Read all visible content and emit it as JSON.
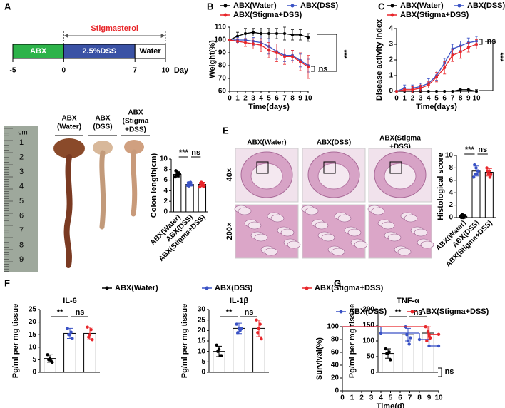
{
  "panel_labels": [
    "A",
    "B",
    "C",
    "D",
    "E",
    "F",
    "G"
  ],
  "timeline": {
    "segments": [
      {
        "label": "ABX",
        "color": "#2db34a",
        "start": -5,
        "end": 0
      },
      {
        "label": "2.5%DSS",
        "color": "#3a52a5",
        "start": 0,
        "end": 7
      },
      {
        "label": "Water",
        "color": "#ffffff",
        "start": 7,
        "end": 10
      }
    ],
    "treatment": {
      "label": "Stigmasterol",
      "start": 0,
      "end": 10,
      "color": "#e8262a"
    },
    "ticks": [
      -5,
      0,
      7,
      10
    ],
    "unit": "Day"
  },
  "ruler": {
    "unit": "cm",
    "marks": [
      "1",
      "2",
      "3",
      "4",
      "5",
      "6",
      "7",
      "8",
      "9"
    ]
  },
  "photo_labels": [
    [
      "ABX",
      "(Water)"
    ],
    [
      "ABX",
      "(DSS)"
    ],
    [
      "ABX",
      "(Stigma",
      "+DSS)"
    ]
  ],
  "histology": {
    "columns": [
      [
        "ABX(Water)"
      ],
      [
        "ABX(DSS)"
      ],
      [
        "ABX(Stigma",
        "+DSS)"
      ]
    ],
    "rows": [
      "40×",
      "200×"
    ]
  },
  "legend_f": [
    {
      "name": "ABX(Water)",
      "color": "#000000"
    },
    {
      "name": "ABX(DSS)",
      "color": "#3a52c5"
    },
    {
      "name": "ABX(Stigma+DSS)",
      "color": "#e8262a"
    }
  ],
  "chart_data": [
    {
      "type": "line",
      "xlabel": "Time(days)",
      "ylabel": "Weight(%)",
      "x": [
        0,
        1,
        2,
        3,
        4,
        5,
        6,
        7,
        8,
        9,
        10
      ],
      "xlim": [
        0,
        10
      ],
      "xticks": [
        0,
        1,
        2,
        3,
        4,
        5,
        6,
        7,
        8,
        9,
        10
      ],
      "ylim": [
        60,
        110
      ],
      "yticks": [
        60,
        70,
        80,
        90,
        100,
        110
      ],
      "series": [
        {
          "name": "ABX(Water)",
          "color": "#000000",
          "values": [
            100,
            103,
            105,
            106,
            105,
            105,
            105,
            105,
            104,
            104,
            102
          ],
          "errors": [
            0,
            3,
            4,
            3,
            4,
            4,
            4,
            5,
            4,
            4,
            3
          ]
        },
        {
          "name": "ABX(DSS)",
          "color": "#3a52c5",
          "values": [
            100,
            100,
            100,
            99,
            98,
            95,
            91,
            88,
            88,
            84,
            80
          ],
          "errors": [
            0,
            2,
            3,
            3,
            5,
            6,
            6,
            5,
            4,
            5,
            5
          ]
        },
        {
          "name": "ABX(Stigma+DSS)",
          "color": "#e8262a",
          "values": [
            100,
            99,
            98,
            97,
            96,
            92,
            90,
            87,
            87,
            83,
            79
          ],
          "errors": [
            0,
            2,
            3,
            4,
            5,
            6,
            7,
            6,
            5,
            7,
            9
          ]
        }
      ],
      "annotations": [
        "ns",
        "***"
      ]
    },
    {
      "type": "line",
      "xlabel": "Time(days)",
      "ylabel": "Disease activity index",
      "x": [
        0,
        1,
        2,
        3,
        4,
        5,
        6,
        7,
        8,
        9,
        10
      ],
      "xlim": [
        0,
        10
      ],
      "xticks": [
        0,
        1,
        2,
        3,
        4,
        5,
        6,
        7,
        8,
        9,
        10
      ],
      "ylim": [
        0,
        4
      ],
      "yticks": [
        0,
        1,
        2,
        3,
        4
      ],
      "series": [
        {
          "name": "ABX(Water)",
          "color": "#000000",
          "values": [
            0,
            0,
            0,
            0,
            0,
            0,
            0,
            0,
            0.1,
            0.1,
            0
          ],
          "errors": [
            0,
            0,
            0,
            0,
            0,
            0,
            0,
            0,
            0.1,
            0.1,
            0.1
          ]
        },
        {
          "name": "ABX(DSS)",
          "color": "#3a52c5",
          "values": [
            0,
            0.2,
            0.2,
            0.3,
            0.5,
            1.0,
            1.8,
            2.7,
            2.9,
            3.1,
            3.2
          ],
          "errors": [
            0,
            0.2,
            0.2,
            0.2,
            0.3,
            0.3,
            0.3,
            0.3,
            0.3,
            0.3,
            0.3
          ]
        },
        {
          "name": "ABX(Stigma+DSS)",
          "color": "#e8262a",
          "values": [
            0,
            0.1,
            0.1,
            0.2,
            0.4,
            0.9,
            1.5,
            2.3,
            2.5,
            2.8,
            3.0
          ],
          "errors": [
            0,
            0.1,
            0.2,
            0.2,
            0.2,
            0.3,
            0.4,
            0.4,
            0.4,
            0.3,
            0.3
          ]
        }
      ],
      "annotations": [
        "ns",
        "***"
      ]
    },
    {
      "type": "bar",
      "ylabel": "Colon length(cm)",
      "categories": [
        "ABX(Water)",
        "ABX(DSS)",
        "ABX(Stigma+DSS)"
      ],
      "values": [
        7.1,
        5.2,
        5.2
      ],
      "errors": [
        0.5,
        0.3,
        0.4
      ],
      "colors": [
        "#000000",
        "#3a52c5",
        "#e8262a"
      ],
      "points": [
        [
          7.8,
          7.5,
          7.3,
          7.0,
          6.8,
          6.6,
          7.2
        ],
        [
          5.5,
          5.3,
          5.1,
          4.9,
          5.6,
          5.0
        ],
        [
          5.4,
          5.1,
          4.8,
          5.6,
          5.2,
          4.7,
          5.0
        ]
      ],
      "ylim": [
        0,
        10
      ],
      "yticks": [
        0,
        2,
        4,
        6,
        8,
        10
      ],
      "annotations": [
        "***",
        "ns"
      ]
    },
    {
      "type": "bar",
      "ylabel": "Histological score",
      "categories": [
        "ABX(Water)",
        "ABX(DSS)",
        "ABX(Stigma+DSS)"
      ],
      "values": [
        0.2,
        7.5,
        7.3
      ],
      "errors": [
        0.3,
        0.8,
        0.6
      ],
      "colors": [
        "#000000",
        "#3a52c5",
        "#e8262a"
      ],
      "points": [
        [
          0,
          0,
          0.3,
          0.5,
          0,
          0.2
        ],
        [
          8.5,
          8,
          7.5,
          7,
          7,
          6.5,
          7.5
        ],
        [
          7.5,
          7.5,
          7,
          7,
          6.5,
          8
        ]
      ],
      "ylim": [
        0,
        10
      ],
      "yticks": [
        0,
        2,
        4,
        6,
        8,
        10
      ],
      "annotations": [
        "***",
        "ns"
      ]
    },
    {
      "type": "bar",
      "title": "IL-6",
      "ylabel": "Pg/ml per mg tissue",
      "values": [
        5.5,
        15.5,
        15.5
      ],
      "errors": [
        1.5,
        2,
        2.5
      ],
      "colors": [
        "#000000",
        "#3a52c5",
        "#e8262a"
      ],
      "points": [
        [
          7,
          5.5,
          4,
          5,
          4.5
        ],
        [
          17.5,
          15,
          13.5,
          15,
          16
        ],
        [
          18,
          15,
          13,
          14,
          17
        ]
      ],
      "ylim": [
        0,
        25
      ],
      "yticks": [
        0,
        5,
        10,
        15,
        20,
        25
      ],
      "annotations": [
        "**",
        "ns"
      ]
    },
    {
      "type": "bar",
      "title": "IL-1β",
      "ylabel": "Pg/ml per mg tissue",
      "values": [
        10,
        21,
        21
      ],
      "errors": [
        2.5,
        2.5,
        4
      ],
      "colors": [
        "#000000",
        "#3a52c5",
        "#e8262a"
      ],
      "points": [
        [
          13,
          11,
          8,
          10,
          8
        ],
        [
          23,
          21,
          21,
          19,
          20
        ],
        [
          25,
          21,
          16,
          19,
          23
        ]
      ],
      "ylim": [
        0,
        30
      ],
      "yticks": [
        0,
        5,
        10,
        15,
        20,
        25,
        30
      ],
      "annotations": [
        "**",
        "ns"
      ]
    },
    {
      "type": "bar",
      "title": "TNF-α",
      "ylabel": "Pg/ml per mg tissue",
      "values": [
        60,
        120,
        125
      ],
      "errors": [
        15,
        20,
        20
      ],
      "colors": [
        "#000000",
        "#3a52c5",
        "#e8262a"
      ],
      "points": [
        [
          75,
          60,
          40,
          60,
          65
        ],
        [
          145,
          100,
          110,
          120,
          90
        ],
        [
          145,
          130,
          110,
          100,
          115
        ]
      ],
      "ylim": [
        0,
        200
      ],
      "yticks": [
        0,
        50,
        100,
        150,
        200
      ],
      "annotations": [
        "**",
        "ns"
      ]
    },
    {
      "type": "step",
      "xlabel": "Time(d)",
      "ylabel": "Survival(%)",
      "xlim": [
        0,
        10
      ],
      "xticks": [
        0,
        1,
        2,
        3,
        4,
        5,
        6,
        7,
        8,
        9,
        10
      ],
      "ylim": [
        0,
        100
      ],
      "yticks": [
        0,
        20,
        40,
        60,
        80,
        100
      ],
      "series": [
        {
          "name": "ABX(DSS)",
          "color": "#3a52c5",
          "x": [
            0,
            4,
            8,
            9,
            10
          ],
          "values": [
            100,
            90,
            80,
            70,
            70
          ]
        },
        {
          "name": "ABX(Stigma+DSS)",
          "color": "#e8262a",
          "x": [
            0,
            9,
            10
          ],
          "values": [
            100,
            88,
            88
          ]
        }
      ],
      "annotations": [
        "ns"
      ]
    }
  ]
}
